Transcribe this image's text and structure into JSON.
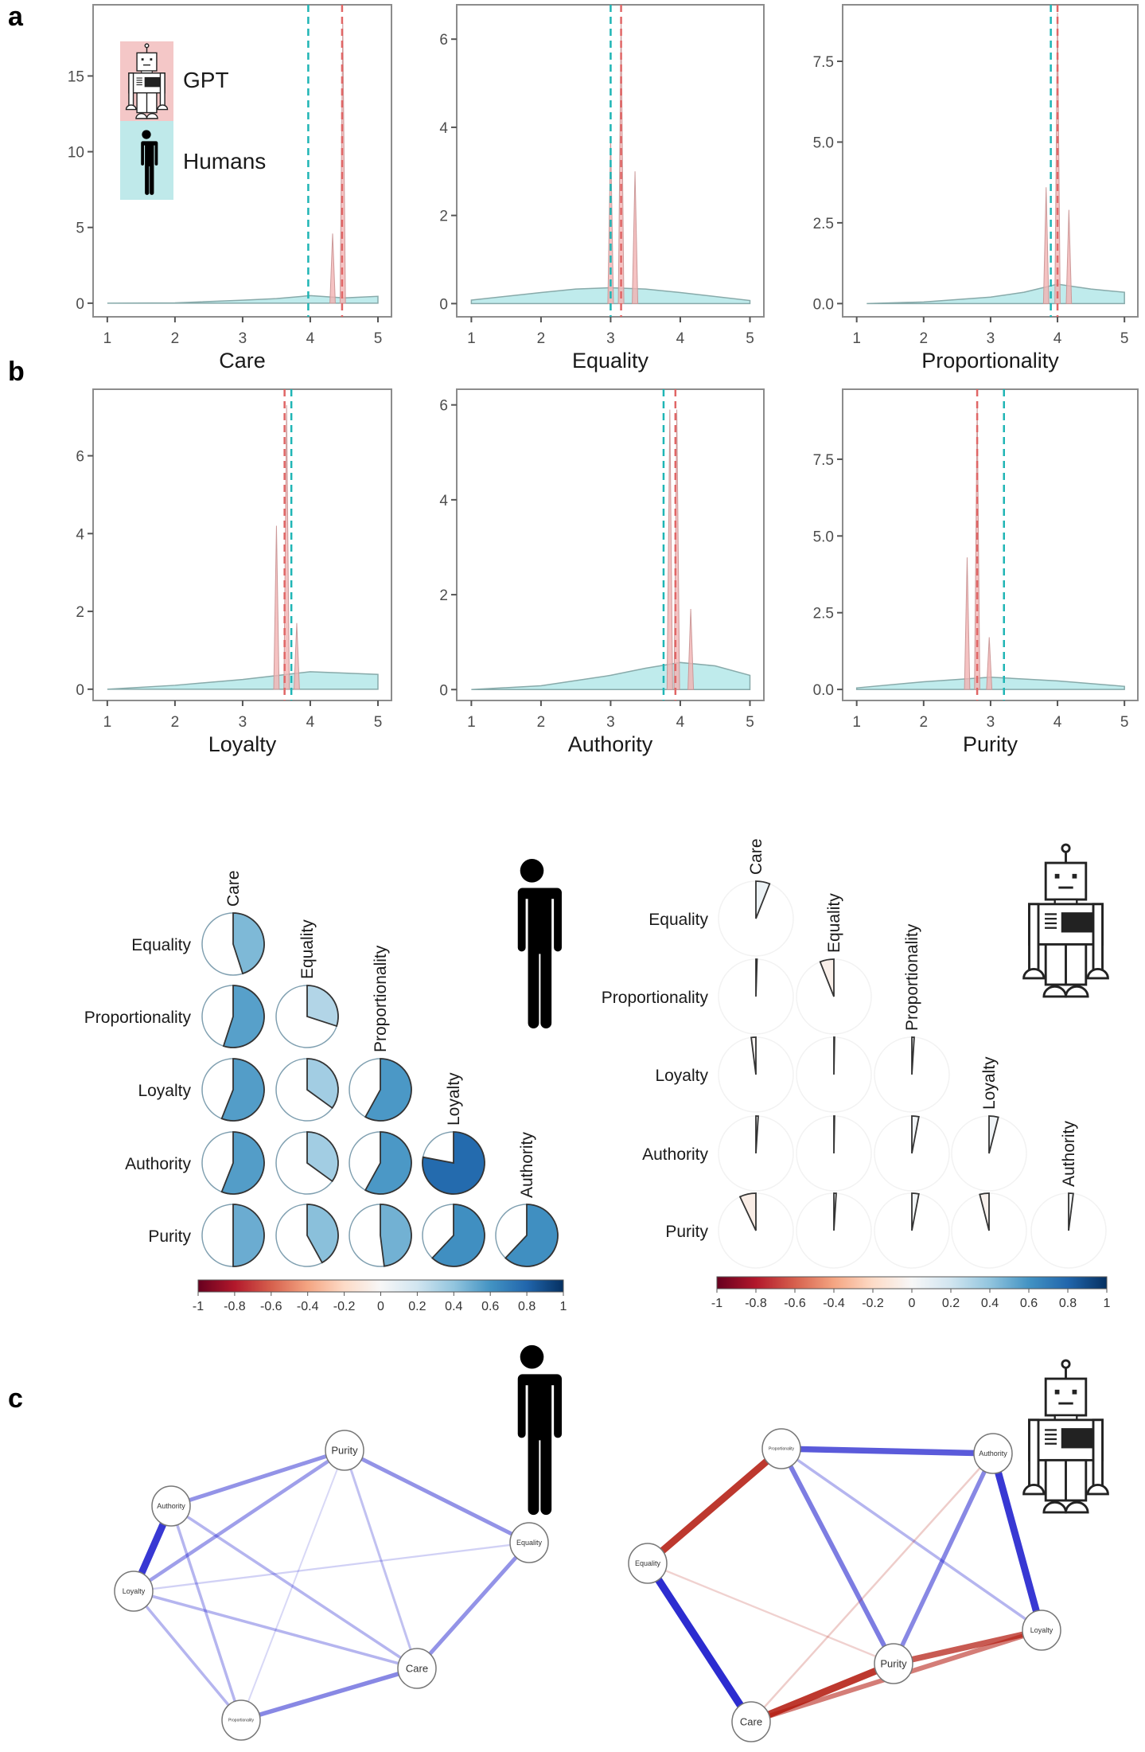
{
  "panel_letters": [
    "a",
    "b",
    "c"
  ],
  "legend": {
    "gpt": "GPT",
    "humans": "Humans",
    "gpt_color": "#f4c7c7",
    "humans_color": "#bfe9ea"
  },
  "colors": {
    "gpt": "#e06666",
    "humans": "#1fb5b5",
    "positive": "#1a1acc",
    "negative": "#b31a0f"
  },
  "chart_data": [
    {
      "type": "area",
      "panel": "a",
      "xlabel": "Care",
      "xlim": [
        0.79,
        5.2
      ],
      "ylim": [
        -0.9,
        19.7
      ],
      "xticks": [
        "1",
        "2",
        "3",
        "4",
        "5"
      ],
      "yticks": [
        "0",
        "5",
        "10",
        "15"
      ],
      "ytick_values": [
        0,
        5,
        10,
        15
      ],
      "humans_density": [
        [
          1,
          0
        ],
        [
          2,
          0.02
        ],
        [
          3,
          0.2
        ],
        [
          3.5,
          0.3
        ],
        [
          4,
          0.5
        ],
        [
          4.5,
          0.35
        ],
        [
          5,
          0.45
        ]
      ],
      "gpt_peaks": [
        [
          4.33,
          4.6
        ],
        [
          4.48,
          18.5
        ]
      ],
      "humans_mean": 3.97,
      "gpt_mean": 4.47
    },
    {
      "type": "area",
      "panel": "a",
      "xlabel": "Equality",
      "xlim": [
        0.79,
        5.2
      ],
      "ylim": [
        -0.3,
        6.78
      ],
      "xticks": [
        "1",
        "2",
        "3",
        "4",
        "5"
      ],
      "yticks": [
        "0",
        "2",
        "4",
        "6"
      ],
      "ytick_values": [
        0,
        2,
        4,
        6
      ],
      "humans_density": [
        [
          1,
          0.08
        ],
        [
          2,
          0.25
        ],
        [
          2.5,
          0.33
        ],
        [
          3,
          0.36
        ],
        [
          3.5,
          0.33
        ],
        [
          4,
          0.25
        ],
        [
          5,
          0.07
        ]
      ],
      "gpt_peaks": [
        [
          3.0,
          3.8
        ],
        [
          3.15,
          6.4
        ],
        [
          3.35,
          3.0
        ]
      ],
      "humans_mean": 3.0,
      "gpt_mean": 3.15
    },
    {
      "type": "area",
      "panel": "a",
      "xlabel": "Proportionality",
      "xlim": [
        0.79,
        5.2
      ],
      "ylim": [
        -0.41,
        9.25
      ],
      "xticks": [
        "1",
        "2",
        "3",
        "4",
        "5"
      ],
      "yticks": [
        "0.0",
        "2.5",
        "5.0",
        "7.5"
      ],
      "ytick_values": [
        0,
        2.5,
        5,
        7.5
      ],
      "humans_density": [
        [
          1.15,
          0
        ],
        [
          2,
          0.05
        ],
        [
          3,
          0.2
        ],
        [
          3.5,
          0.35
        ],
        [
          4,
          0.6
        ],
        [
          4.5,
          0.45
        ],
        [
          5,
          0.35
        ]
      ],
      "gpt_peaks": [
        [
          3.83,
          3.6
        ],
        [
          4.0,
          9.0
        ],
        [
          4.17,
          2.9
        ]
      ],
      "humans_mean": 3.9,
      "gpt_mean": 4.0
    },
    {
      "type": "area",
      "panel": "b",
      "xlabel": "Loyalty",
      "xlim": [
        0.79,
        5.2
      ],
      "ylim": [
        -0.29,
        7.71
      ],
      "xticks": [
        "1",
        "2",
        "3",
        "4",
        "5"
      ],
      "yticks": [
        "0",
        "2",
        "4",
        "6"
      ],
      "ytick_values": [
        0,
        2,
        4,
        6
      ],
      "humans_density": [
        [
          1,
          0
        ],
        [
          2,
          0.1
        ],
        [
          3,
          0.25
        ],
        [
          3.5,
          0.35
        ],
        [
          4,
          0.45
        ],
        [
          5,
          0.38
        ]
      ],
      "gpt_peaks": [
        [
          3.5,
          4.2
        ],
        [
          3.65,
          7.3
        ],
        [
          3.8,
          1.7
        ]
      ],
      "humans_mean": 3.72,
      "gpt_mean": 3.62
    },
    {
      "type": "area",
      "panel": "b",
      "xlabel": "Authority",
      "xlim": [
        0.79,
        5.2
      ],
      "ylim": [
        -0.23,
        6.33
      ],
      "xticks": [
        "1",
        "2",
        "3",
        "4",
        "5"
      ],
      "yticks": [
        "0",
        "2",
        "4",
        "6"
      ],
      "ytick_values": [
        0,
        2,
        4,
        6
      ],
      "humans_density": [
        [
          1,
          0
        ],
        [
          2,
          0.08
        ],
        [
          3,
          0.3
        ],
        [
          3.5,
          0.45
        ],
        [
          4,
          0.57
        ],
        [
          4.5,
          0.5
        ],
        [
          5,
          0.3
        ]
      ],
      "gpt_peaks": [
        [
          3.85,
          5.9
        ],
        [
          3.95,
          5.9
        ],
        [
          4.15,
          1.7
        ]
      ],
      "humans_mean": 3.76,
      "gpt_mean": 3.93
    },
    {
      "type": "area",
      "panel": "b",
      "xlabel": "Purity",
      "xlim": [
        0.79,
        5.2
      ],
      "ylim": [
        -0.36,
        9.78
      ],
      "xticks": [
        "1",
        "2",
        "3",
        "4",
        "5"
      ],
      "yticks": [
        "0.0",
        "2.5",
        "5.0",
        "7.5"
      ],
      "ytick_values": [
        0,
        2.5,
        5,
        7.5
      ],
      "humans_density": [
        [
          1,
          0.05
        ],
        [
          2,
          0.25
        ],
        [
          3,
          0.4
        ],
        [
          4,
          0.28
        ],
        [
          5,
          0.1
        ]
      ],
      "gpt_peaks": [
        [
          2.65,
          4.3
        ],
        [
          2.8,
          9.3
        ],
        [
          2.98,
          1.7
        ]
      ],
      "humans_mean": 3.2,
      "gpt_mean": 2.8
    },
    {
      "type": "heatmap",
      "group": "Humans",
      "style": "pie",
      "row_labels": [
        "Equality",
        "Proportionality",
        "Loyalty",
        "Authority",
        "Purity"
      ],
      "col_labels": [
        "Care",
        "Equality",
        "Proportionality",
        "Loyalty",
        "Authority"
      ],
      "values": [
        [
          0.45
        ],
        [
          0.55,
          0.3
        ],
        [
          0.56,
          0.35,
          0.58
        ],
        [
          0.56,
          0.35,
          0.58,
          0.78
        ],
        [
          0.5,
          0.42,
          0.48,
          0.62,
          0.62
        ]
      ],
      "colorbar_ticks": [
        "-1",
        "-0.8",
        "-0.6",
        "-0.4",
        "-0.2",
        "0",
        "0.2",
        "0.4",
        "0.6",
        "0.8",
        "1"
      ],
      "colorbar_range": [
        -1,
        1
      ]
    },
    {
      "type": "heatmap",
      "group": "GPT",
      "style": "pie",
      "row_labels": [
        "Equality",
        "Proportionality",
        "Loyalty",
        "Authority",
        "Purity"
      ],
      "col_labels": [
        "Care",
        "Equality",
        "Proportionality",
        "Loyalty",
        "Authority"
      ],
      "values": [
        [
          0.06
        ],
        [
          0.005,
          -0.06
        ],
        [
          -0.02,
          0.003,
          0.01
        ],
        [
          0.01,
          0.003,
          0.03,
          0.04
        ],
        [
          -0.07,
          0.01,
          0.03,
          -0.04,
          0.02
        ]
      ],
      "colorbar_ticks": [
        "-1",
        "-0.8",
        "-0.6",
        "-0.4",
        "-0.2",
        "0",
        "0.2",
        "0.4",
        "0.6",
        "0.8",
        "1"
      ],
      "colorbar_range": [
        -1,
        1
      ]
    },
    {
      "type": "network",
      "group": "Humans",
      "nodes": [
        "Purity",
        "Authority",
        "Loyalty",
        "Proportionality",
        "Care",
        "Equality"
      ],
      "edges": [
        [
          "Loyalty",
          "Authority",
          0.75
        ],
        [
          "Authority",
          "Purity",
          0.35
        ],
        [
          "Loyalty",
          "Purity",
          0.3
        ],
        [
          "Purity",
          "Equality",
          0.35
        ],
        [
          "Equality",
          "Care",
          0.35
        ],
        [
          "Care",
          "Proportionality",
          0.4
        ],
        [
          "Authority",
          "Proportionality",
          0.2
        ],
        [
          "Authority",
          "Care",
          0.2
        ],
        [
          "Loyalty",
          "Care",
          0.2
        ],
        [
          "Loyalty",
          "Proportionality",
          0.2
        ],
        [
          "Purity",
          "Care",
          0.15
        ],
        [
          "Purity",
          "Proportionality",
          0.05
        ],
        [
          "Loyalty",
          "Equality",
          0.08
        ]
      ]
    },
    {
      "type": "network",
      "group": "GPT",
      "nodes": [
        "Proportionality",
        "Authority",
        "Equality",
        "Loyalty",
        "Purity",
        "Care"
      ],
      "edges": [
        [
          "Proportionality",
          "Authority",
          0.6
        ],
        [
          "Proportionality",
          "Equality",
          -0.75
        ],
        [
          "Equality",
          "Care",
          0.8
        ],
        [
          "Authority",
          "Loyalty",
          0.75
        ],
        [
          "Care",
          "Purity",
          -0.75
        ],
        [
          "Care",
          "Loyalty",
          -0.45
        ],
        [
          "Purity",
          "Loyalty",
          -0.6
        ],
        [
          "Proportionality",
          "Purity",
          0.45
        ],
        [
          "Authority",
          "Purity",
          0.4
        ],
        [
          "Proportionality",
          "Loyalty",
          0.2
        ],
        [
          "Authority",
          "Care",
          -0.1
        ],
        [
          "Equality",
          "Purity",
          -0.08
        ]
      ]
    }
  ]
}
